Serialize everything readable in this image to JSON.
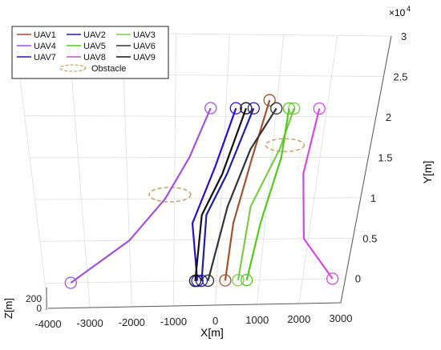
{
  "chart_data": {
    "type": "line3d",
    "title": "",
    "xlabel": "X[m]",
    "ylabel": "Y[m]",
    "zlabel": "Z[m]",
    "y_multiplier": "×10",
    "y_multiplier_exp": "4",
    "xlim": [
      -4000,
      3000
    ],
    "ylim": [
      -0.3,
      3
    ],
    "zlim": [
      0,
      200
    ],
    "x_ticks": [
      "-4000",
      "-3000",
      "-2000",
      "-1000",
      "0",
      "1000",
      "2000",
      "3000"
    ],
    "y_ticks": [
      "0",
      "0.5",
      "1",
      "1.5",
      "2",
      "2.5",
      "3"
    ],
    "z_ticks": [
      "0",
      "200"
    ],
    "grid": true,
    "legend_position": "top-left",
    "legend": [
      {
        "label": "UAV1",
        "color": "#a0522d",
        "style": "solid"
      },
      {
        "label": "UAV2",
        "color": "#1f1fa0",
        "style": "solid"
      },
      {
        "label": "UAV3",
        "color": "#7ec850",
        "style": "solid"
      },
      {
        "label": "UAV4",
        "color": "#a052d8",
        "style": "solid"
      },
      {
        "label": "UAV5",
        "color": "#55c81e",
        "style": "solid"
      },
      {
        "label": "UAV6",
        "color": "#333333",
        "style": "solid"
      },
      {
        "label": "UAV7",
        "color": "#2a10c8",
        "style": "solid"
      },
      {
        "label": "UAV8",
        "color": "#d24ae0",
        "style": "solid"
      },
      {
        "label": "UAV9",
        "color": "#111111",
        "style": "solid"
      },
      {
        "label": "Obstacle",
        "color": "#c8a06e",
        "style": "dashed-ellipse"
      }
    ],
    "series": [
      {
        "name": "UAV1",
        "color": "#a0522d",
        "points": [
          [
            200,
            0
          ],
          [
            300,
            0.7
          ],
          [
            600,
            1.5
          ],
          [
            850,
            2.2
          ]
        ]
      },
      {
        "name": "UAV2",
        "color": "#1f1fa0",
        "points": [
          [
            -350,
            0
          ],
          [
            -300,
            0.8
          ],
          [
            100,
            1.3
          ],
          [
            550,
            2.1
          ]
        ]
      },
      {
        "name": "UAV3",
        "color": "#7ec850",
        "points": [
          [
            500,
            0
          ],
          [
            650,
            0.9
          ],
          [
            1150,
            1.6
          ],
          [
            1350,
            2.1
          ]
        ]
      },
      {
        "name": "UAV4",
        "color": "#a052d8",
        "points": [
          [
            -3400,
            0
          ],
          [
            -2000,
            0.5
          ],
          [
            -1200,
            1.0
          ],
          [
            -700,
            1.5
          ],
          [
            -300,
            2.1
          ]
        ]
      },
      {
        "name": "UAV5",
        "color": "#55c81e",
        "points": [
          [
            700,
            0
          ],
          [
            900,
            0.7
          ],
          [
            1200,
            1.5
          ],
          [
            1250,
            2.1
          ]
        ]
      },
      {
        "name": "UAV6",
        "color": "#333333",
        "points": [
          [
            -200,
            0
          ],
          [
            150,
            0.9
          ],
          [
            550,
            1.6
          ],
          [
            1000,
            2.1
          ]
        ]
      },
      {
        "name": "UAV7",
        "color": "#2a10c8",
        "points": [
          [
            -450,
            0
          ],
          [
            -600,
            0.7
          ],
          [
            -150,
            1.4
          ],
          [
            200,
            2.1
          ]
        ]
      },
      {
        "name": "UAV8",
        "color": "#d24ae0",
        "points": [
          [
            2700,
            0
          ],
          [
            1900,
            0.5
          ],
          [
            1700,
            1.3
          ],
          [
            1850,
            2.1
          ]
        ]
      },
      {
        "name": "UAV9",
        "color": "#111111",
        "points": [
          [
            -500,
            0
          ],
          [
            -400,
            0.8
          ],
          [
            0,
            1.3
          ],
          [
            400,
            2.1
          ]
        ]
      }
    ]
  }
}
